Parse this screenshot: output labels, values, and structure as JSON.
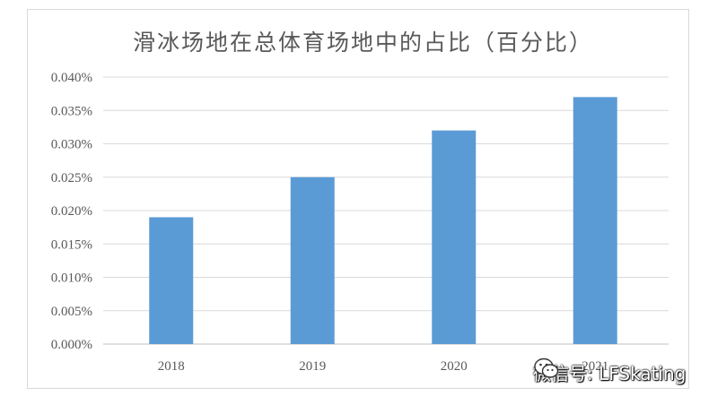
{
  "chart_data": {
    "type": "bar",
    "title": "滑冰场地在总体育场地中的占比（百分比）",
    "categories": [
      "2018",
      "2019",
      "2020",
      "2021"
    ],
    "values": [
      0.019,
      0.025,
      0.032,
      0.037
    ],
    "unit": "%",
    "ylim": [
      0,
      0.04
    ],
    "yticks": [
      "0.000%",
      "0.005%",
      "0.010%",
      "0.015%",
      "0.020%",
      "0.025%",
      "0.030%",
      "0.035%",
      "0.040%"
    ],
    "grid": true,
    "legend": "none",
    "bar_color": "#5b9bd5"
  },
  "watermark": {
    "text": "微信号: LFSkating",
    "icon": "wechat-icon"
  }
}
